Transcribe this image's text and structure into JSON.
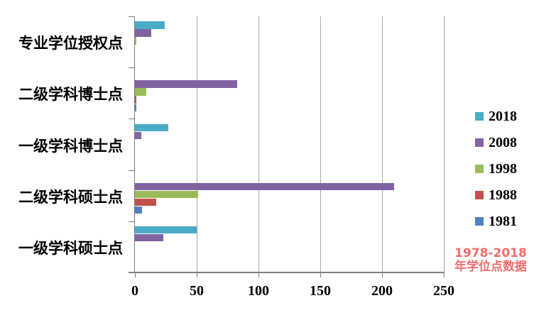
{
  "chart_data": {
    "type": "bar",
    "orientation": "horizontal",
    "title": "",
    "xlabel": "",
    "ylabel": "",
    "categories": [
      "专业学位授权点",
      "二级学科博士点",
      "一级学科博士点",
      "二级学科硕士点",
      "一级学科硕士点"
    ],
    "series": [
      {
        "name": "2018",
        "color": "#4BACC6",
        "values": [
          24,
          0,
          27,
          0,
          50
        ]
      },
      {
        "name": "2008",
        "color": "#8064A2",
        "values": [
          13,
          83,
          5,
          210,
          23
        ]
      },
      {
        "name": "1998",
        "color": "#9BBB59",
        "values": [
          1,
          9,
          0,
          51,
          0
        ]
      },
      {
        "name": "1988",
        "color": "#C0504D",
        "values": [
          0,
          1,
          0,
          17,
          0
        ]
      },
      {
        "name": "1981",
        "color": "#4F81BD",
        "values": [
          0,
          1,
          0,
          6,
          0
        ]
      }
    ],
    "xlim": [
      0,
      250
    ],
    "xticks": [
      "0",
      "50",
      "100",
      "150",
      "200",
      "250"
    ],
    "grid": "vertical-gridlines",
    "legend_position": "right",
    "gridline_color": "#A6A6A6",
    "axis_color": "#7F7F7F"
  },
  "annotation": {
    "line1": "1978-2018",
    "line2": "年学位点数据",
    "color": "#F26D6D"
  }
}
